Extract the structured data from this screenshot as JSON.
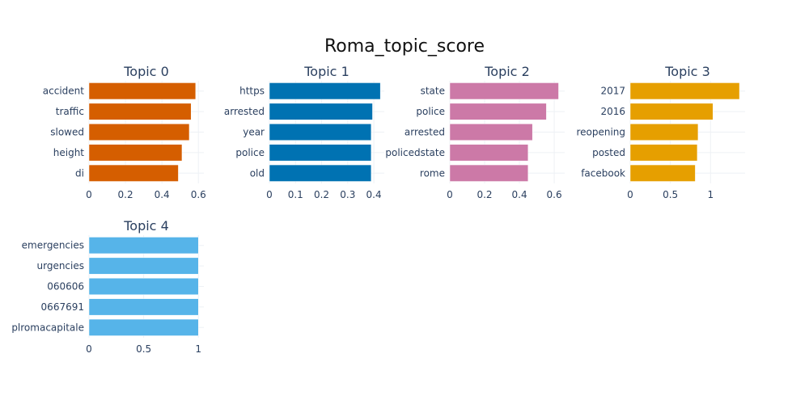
{
  "chart_data": {
    "type": "bar",
    "orientation": "horizontal",
    "title": "Roma_topic_score",
    "grid": true,
    "subplots": [
      {
        "title": "Topic 0",
        "color": "#D55E00",
        "categories": [
          "accident",
          "traffic",
          "slowed",
          "height",
          "di"
        ],
        "values": [
          0.585,
          0.56,
          0.55,
          0.51,
          0.49
        ],
        "xlim": [
          0,
          0.63
        ],
        "xticks": [
          0,
          0.2,
          0.4,
          0.6
        ],
        "xticklabels": [
          "0",
          "0.2",
          "0.4",
          "0.6"
        ]
      },
      {
        "title": "Topic 1",
        "color": "#0072B2",
        "categories": [
          "https",
          "arrested",
          "year",
          "police",
          "old"
        ],
        "values": [
          0.425,
          0.395,
          0.39,
          0.39,
          0.39
        ],
        "xlim": [
          0,
          0.44
        ],
        "xticks": [
          0,
          0.1,
          0.2,
          0.3,
          0.4
        ],
        "xticklabels": [
          "0",
          "0.1",
          "0.2",
          "0.3",
          "0.4"
        ]
      },
      {
        "title": "Topic 2",
        "color": "#CC79A7",
        "categories": [
          "state",
          "police",
          "arrested",
          "policedstate",
          "rome"
        ],
        "values": [
          0.625,
          0.555,
          0.475,
          0.45,
          0.45
        ],
        "xlim": [
          0,
          0.66
        ],
        "xticks": [
          0,
          0.2,
          0.4,
          0.6
        ],
        "xticklabels": [
          "0",
          "0.2",
          "0.4",
          "0.6"
        ]
      },
      {
        "title": "Topic 3",
        "color": "#E69F00",
        "categories": [
          "2017",
          "2016",
          "reopening",
          "posted",
          "facebook"
        ],
        "values": [
          1.36,
          1.03,
          0.845,
          0.835,
          0.81
        ],
        "xlim": [
          0,
          1.43
        ],
        "xticks": [
          0,
          0.5,
          1
        ],
        "xticklabels": [
          "0",
          "0.5",
          "1"
        ]
      },
      {
        "title": "Topic 4",
        "color": "#56B4E9",
        "categories": [
          "emergencies",
          "urgencies",
          "060606",
          "0667691",
          "plromacapitale"
        ],
        "values": [
          1.0,
          1.0,
          1.0,
          1.0,
          1.0
        ],
        "xlim": [
          0,
          1.05
        ],
        "xticks": [
          0,
          0.5,
          1
        ],
        "xticklabels": [
          "0",
          "0.5",
          "1"
        ]
      }
    ]
  }
}
